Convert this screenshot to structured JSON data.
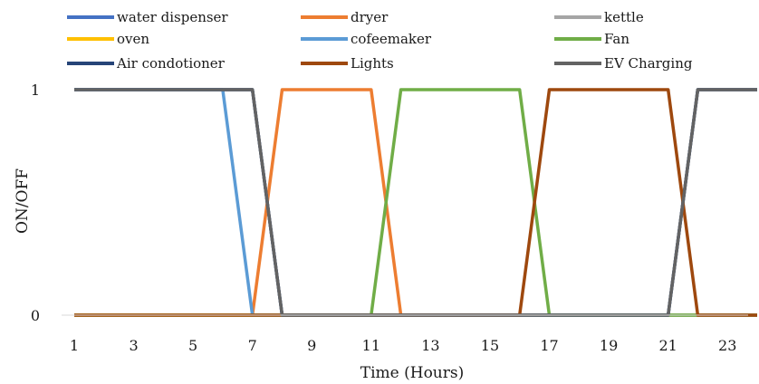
{
  "chart_data": {
    "type": "line",
    "xlabel": "Time (Hours)",
    "ylabel": "ON/OFF",
    "x": [
      1,
      2,
      3,
      4,
      5,
      6,
      7,
      8,
      9,
      10,
      11,
      12,
      13,
      14,
      15,
      16,
      17,
      18,
      19,
      20,
      21,
      22,
      23,
      24
    ],
    "x_tick_labels": [
      "1",
      "3",
      "5",
      "7",
      "9",
      "11",
      "13",
      "15",
      "17",
      "19",
      "21",
      "23"
    ],
    "x_tick_values": [
      1,
      3,
      5,
      7,
      9,
      11,
      13,
      15,
      17,
      19,
      21,
      23
    ],
    "y_ticks": [
      0,
      1
    ],
    "ylim": [
      0,
      1
    ],
    "grid": false,
    "legend_position": "top",
    "series": [
      {
        "name": "water dispenser",
        "color": "#4472C4",
        "values": [
          1,
          1,
          1,
          1,
          1,
          1,
          1,
          0,
          0,
          0,
          0,
          0,
          0,
          0,
          0,
          0,
          0,
          0,
          0,
          0,
          0,
          1,
          1,
          1
        ]
      },
      {
        "name": "dryer",
        "color": "#ED7D31",
        "values": [
          0,
          0,
          0,
          0,
          0,
          0,
          0,
          1,
          1,
          1,
          1,
          0,
          0,
          0,
          0,
          0,
          0,
          0,
          0,
          0,
          0,
          0,
          0,
          0
        ]
      },
      {
        "name": "kettle",
        "color": "#A5A5A5",
        "values": [
          1,
          1,
          1,
          1,
          1,
          1,
          1,
          0,
          0,
          0,
          0,
          0,
          0,
          0,
          0,
          0,
          0,
          0,
          0,
          0,
          0,
          1,
          1,
          1
        ]
      },
      {
        "name": "oven",
        "color": "#FFC000",
        "values": [
          0,
          0,
          0,
          0,
          0,
          0,
          0,
          0,
          0,
          0,
          0,
          0,
          0,
          0,
          0,
          0,
          0,
          0,
          0,
          0,
          0,
          0,
          0,
          0
        ]
      },
      {
        "name": "cofeemaker",
        "color": "#5B9BD5",
        "values": [
          1,
          1,
          1,
          1,
          1,
          1,
          0,
          0,
          0,
          0,
          0,
          0,
          0,
          0,
          0,
          0,
          0,
          0,
          0,
          0,
          0,
          0,
          0,
          0
        ]
      },
      {
        "name": "Fan",
        "color": "#70AD47",
        "values": [
          0,
          0,
          0,
          0,
          0,
          0,
          0,
          0,
          0,
          0,
          0,
          1,
          1,
          1,
          1,
          1,
          0,
          0,
          0,
          0,
          0,
          0,
          0,
          0
        ]
      },
      {
        "name": "Air condotioner",
        "color": "#264478",
        "values": [
          1,
          1,
          1,
          1,
          1,
          1,
          1,
          0,
          0,
          0,
          0,
          0,
          0,
          0,
          0,
          0,
          0,
          0,
          0,
          0,
          0,
          1,
          1,
          1
        ]
      },
      {
        "name": "Lights",
        "color": "#9E480E",
        "values": [
          0,
          0,
          0,
          0,
          0,
          0,
          0,
          0,
          0,
          0,
          0,
          0,
          0,
          0,
          0,
          0,
          1,
          1,
          1,
          1,
          1,
          0,
          0,
          0
        ]
      },
      {
        "name": "EV Charging",
        "color": "#636363",
        "values": [
          1,
          1,
          1,
          1,
          1,
          1,
          1,
          0,
          0,
          0,
          0,
          0,
          0,
          0,
          0,
          0,
          0,
          0,
          0,
          0,
          0,
          1,
          1,
          1
        ]
      }
    ]
  }
}
